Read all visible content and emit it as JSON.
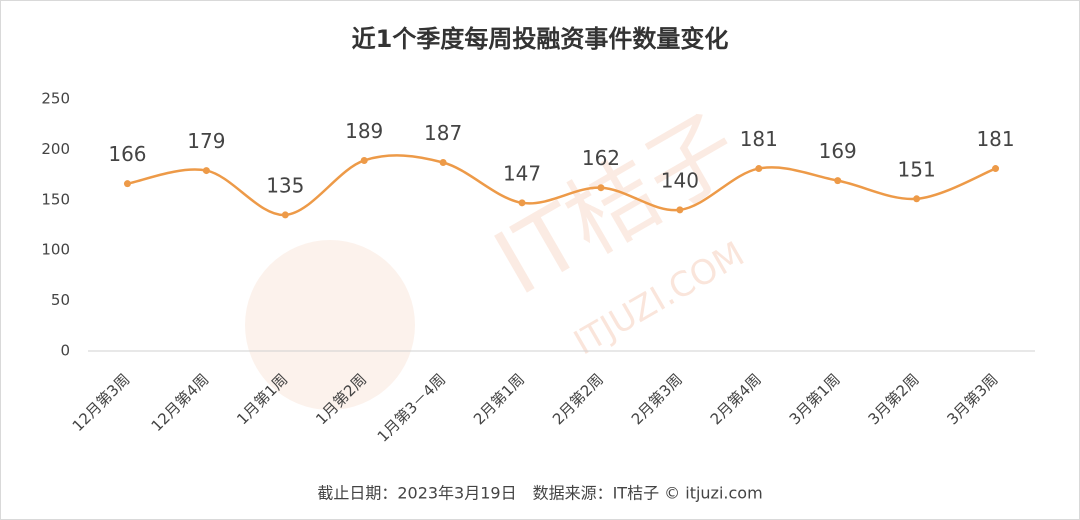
{
  "chart_data": {
    "type": "line",
    "title": "近1个季度每周投融资事件数量变化",
    "footer": "截止日期：2023年3月19日　数据来源：IT桔子 © itjuzi.com",
    "watermark": [
      "IT桔子",
      "ITJUZI.COM"
    ],
    "categories": [
      "12月第3周",
      "12月第4周",
      "1月第1周",
      "1月第2周",
      "1月第3－4周",
      "2月第1周",
      "2月第2周",
      "2月第3周",
      "2月第4周",
      "3月第1周",
      "3月第2周",
      "3月第3周"
    ],
    "values": [
      166,
      179,
      135,
      189,
      187,
      147,
      162,
      140,
      181,
      169,
      151,
      181
    ],
    "color": "#ed9a48",
    "ylim": [
      0,
      250
    ],
    "yticks": [
      0,
      50,
      100,
      150,
      200,
      250
    ],
    "grid": false,
    "smooth": true
  }
}
